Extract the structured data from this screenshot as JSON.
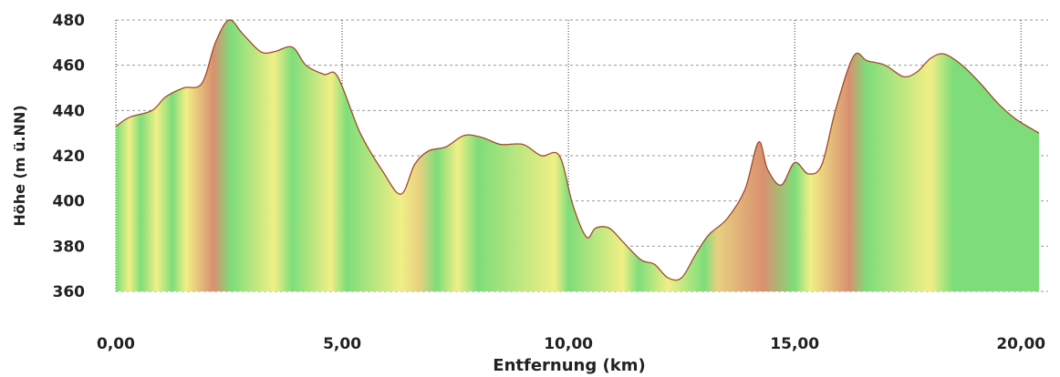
{
  "chart_data": {
    "type": "area",
    "title": "",
    "xlabel": "Entfernung (km)",
    "ylabel": "Höhe (m ü.NN)",
    "xlim": [
      0,
      20.6
    ],
    "ylim": [
      360,
      480
    ],
    "x_ticks": [
      0,
      5,
      10,
      15,
      20
    ],
    "x_tick_labels": [
      "0,00",
      "5,00",
      "10,00",
      "15,00",
      "20,00"
    ],
    "y_ticks": [
      360,
      380,
      400,
      420,
      440,
      460,
      480
    ],
    "y_tick_labels": [
      "360",
      "380",
      "400",
      "420",
      "440",
      "460",
      "480"
    ],
    "grid": true,
    "legend": "none",
    "series": [
      {
        "x": [
          0,
          0.3,
          0.8,
          1.1,
          1.5,
          1.9,
          2.2,
          2.5,
          2.8,
          3.2,
          3.5,
          3.9,
          4.2,
          4.6,
          4.9,
          5.4,
          5.9,
          6.3,
          6.6,
          6.9,
          7.3,
          7.7,
          8.1,
          8.5,
          9.0,
          9.4,
          9.8,
          10.1,
          10.4,
          10.6,
          10.9,
          11.2,
          11.6,
          11.9,
          12.2,
          12.5,
          12.8,
          13.1,
          13.5,
          13.9,
          14.2,
          14.4,
          14.7,
          15.0,
          15.3,
          15.6,
          15.9,
          16.3,
          16.6,
          17.0,
          17.4,
          17.7,
          18.0,
          18.3,
          18.7,
          19.1,
          19.5,
          19.9,
          20.4
        ],
        "y": [
          433,
          437,
          440,
          446,
          450,
          452,
          470,
          480,
          474,
          466,
          466,
          468,
          460,
          456,
          455,
          430,
          413,
          403,
          416,
          422,
          424,
          429,
          428,
          425,
          425,
          420,
          420,
          398,
          384,
          388,
          388,
          382,
          374,
          372,
          366,
          366,
          376,
          385,
          392,
          405,
          426,
          414,
          407,
          417,
          412,
          416,
          440,
          464,
          462,
          460,
          455,
          457,
          463,
          465,
          460,
          452,
          443,
          436,
          430
        ],
        "gradient": [
          [
            "#7edd7a",
            0.0
          ],
          [
            "#f1ef86",
            0.3
          ],
          [
            "#7edd7a",
            0.55
          ],
          [
            "#f1ef86",
            0.9
          ],
          [
            "#7edd7a",
            1.25
          ],
          [
            "#f1ef86",
            1.55
          ],
          [
            "#d99070",
            2.15
          ],
          [
            "#7edd7a",
            2.55
          ],
          [
            "#f1ef86",
            3.5
          ],
          [
            "#7edd7a",
            3.9
          ],
          [
            "#f1ef86",
            4.75
          ],
          [
            "#7edd7a",
            5.1
          ],
          [
            "#f1ef86",
            6.3
          ],
          [
            "#e8d080",
            6.7
          ],
          [
            "#7edd7a",
            7.1
          ],
          [
            "#f1ef86",
            7.55
          ],
          [
            "#7edd7a",
            8.0
          ],
          [
            "#f1ef86",
            9.7
          ],
          [
            "#7edd7a",
            10.0
          ],
          [
            "#f1ef86",
            11.2
          ],
          [
            "#7edd7a",
            11.55
          ],
          [
            "#f1ef86",
            12.2
          ],
          [
            "#e8d080",
            13.3
          ],
          [
            "#7edd7a",
            13.0
          ],
          [
            "#d99070",
            14.3
          ],
          [
            "#7edd7a",
            15.0
          ],
          [
            "#f1ef86",
            15.35
          ],
          [
            "#d99070",
            16.2
          ],
          [
            "#7edd7a",
            16.6
          ],
          [
            "#f1ef86",
            18.0
          ],
          [
            "#7edd7a",
            18.5
          ],
          [
            "#7edd7a",
            20.6
          ]
        ]
      }
    ]
  },
  "colors": {
    "outline": "#a04a2a",
    "grid": "#9a9a9a",
    "vgrid": "#333333",
    "green": "#7edd7a",
    "yellow": "#f1ef86",
    "red": "#d99070"
  }
}
